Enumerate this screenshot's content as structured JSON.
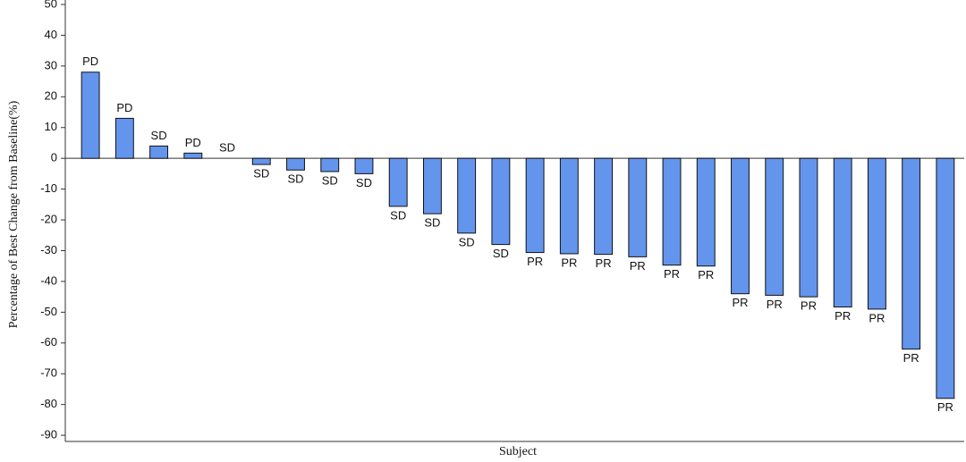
{
  "chart_data": {
    "type": "bar",
    "y_label": "Percentage of Best Change from Baseline(%)",
    "x_label": "Subject",
    "categories": [
      null,
      null,
      null,
      null,
      null,
      null,
      null,
      null,
      null,
      null,
      null,
      null,
      null,
      null,
      null,
      null,
      null,
      null,
      null,
      null,
      null,
      null,
      null,
      null,
      null,
      null
    ],
    "values": [
      28,
      13,
      4,
      1.7,
      0,
      -2,
      -3.8,
      -4.3,
      -5,
      -15.6,
      -18,
      -24.3,
      -28,
      -30.6,
      -31,
      -31.2,
      -32,
      -34.7,
      -35,
      -44,
      -44.5,
      -45,
      -48.3,
      -49,
      -62,
      -78
    ],
    "bar_labels": [
      "PD",
      "PD",
      "SD",
      "PD",
      "SD",
      "SD",
      "SD",
      "SD",
      "SD",
      "SD",
      "SD",
      "SD",
      "SD",
      "PR",
      "PR",
      "PR",
      "PR",
      "PR",
      "PR",
      "PR",
      "PR",
      "PR",
      "PR",
      "PR",
      "PR",
      "PR"
    ],
    "color": "#6495ed",
    "ylim": [
      -92,
      50
    ],
    "yticks": [
      -90,
      -80,
      -70,
      -60,
      -50,
      -40,
      -30,
      -20,
      -10,
      0,
      10,
      20,
      30,
      40,
      50
    ]
  }
}
